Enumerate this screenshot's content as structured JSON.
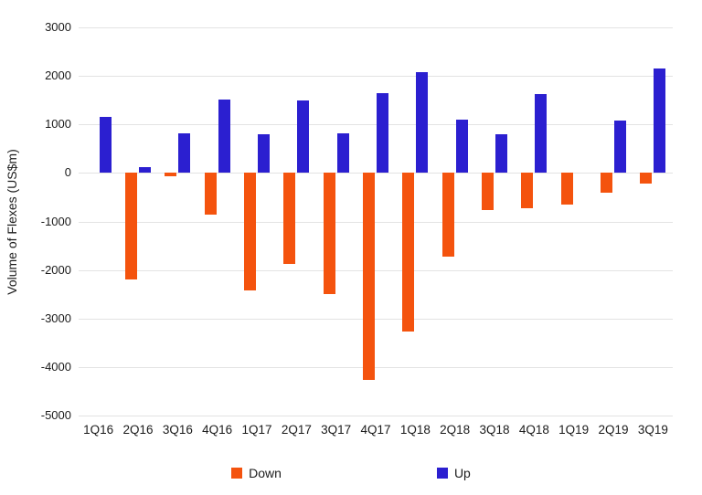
{
  "chart_data": {
    "type": "bar",
    "title": "",
    "xlabel": "",
    "ylabel": "Volume of Flexes (US$m)",
    "categories": [
      "1Q16",
      "2Q16",
      "3Q16",
      "4Q16",
      "1Q17",
      "2Q17",
      "3Q17",
      "4Q17",
      "1Q18",
      "2Q18",
      "3Q18",
      "4Q18",
      "1Q19",
      "2Q19",
      "3Q19"
    ],
    "series": [
      {
        "name": "Down",
        "color": "#f4530e",
        "values": [
          0,
          -2200,
          -60,
          -850,
          -2420,
          -1870,
          -2500,
          -4270,
          -3270,
          -1730,
          -770,
          -720,
          -650,
          -400,
          -210
        ]
      },
      {
        "name": "Up",
        "color": "#2b1fd0",
        "values": [
          1150,
          130,
          820,
          1520,
          790,
          1500,
          820,
          1640,
          2070,
          1100,
          800,
          1620,
          0,
          1090,
          2160
        ]
      }
    ],
    "ylim": [
      -5000,
      3000
    ],
    "yticks": [
      3000,
      2000,
      1000,
      0,
      -1000,
      -2000,
      -3000,
      -4000,
      -5000
    ],
    "grid": true,
    "legend_position": "bottom",
    "colors": {
      "down": "#f4530e",
      "up": "#2b1fd0",
      "gridline": "#e3e3e3",
      "text": "#1b1b1b"
    }
  }
}
